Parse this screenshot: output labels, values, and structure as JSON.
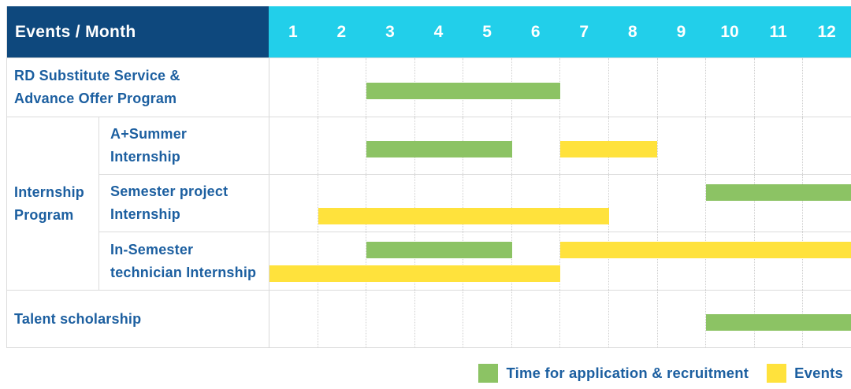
{
  "header": {
    "title": "Events / Month",
    "months": [
      "1",
      "2",
      "3",
      "4",
      "5",
      "6",
      "7",
      "8",
      "9",
      "10",
      "11",
      "12"
    ]
  },
  "group": {
    "lines": [
      "Internship",
      "Program"
    ]
  },
  "rows": [
    {
      "id": "rd-substitute-advance-offer",
      "label_lines": [
        "RD Substitute Service &",
        "Advance Offer Program"
      ],
      "group": "",
      "bar_lines": 1,
      "bars": [
        {
          "type": "recruitment",
          "start": 3,
          "end": 6,
          "line": 0
        }
      ]
    },
    {
      "id": "a-plus-summer-internship",
      "label_lines": [
        "A+Summer",
        "Internship"
      ],
      "group": "Internship Program",
      "bar_lines": 1,
      "bars": [
        {
          "type": "recruitment",
          "start": 3,
          "end": 5,
          "line": 0
        },
        {
          "type": "events",
          "start": 7,
          "end": 8,
          "line": 0
        }
      ]
    },
    {
      "id": "semester-project-internship",
      "label_lines": [
        "Semester project",
        "Internship"
      ],
      "group": "Internship Program",
      "bar_lines": 2,
      "bars": [
        {
          "type": "recruitment",
          "start": 10,
          "end": 12,
          "line": 0
        },
        {
          "type": "events",
          "start": 2,
          "end": 7,
          "line": 1
        }
      ]
    },
    {
      "id": "in-semester-technician-internship",
      "label_lines": [
        "In-Semester",
        "technician Internship"
      ],
      "group": "Internship Program",
      "bar_lines": 2,
      "bars": [
        {
          "type": "recruitment",
          "start": 3,
          "end": 5,
          "line": 0
        },
        {
          "type": "events",
          "start": 7,
          "end": 12,
          "line": 0
        },
        {
          "type": "events",
          "start": 1,
          "end": 6,
          "line": 1
        }
      ]
    },
    {
      "id": "talent-scholarship",
      "label_lines": [
        "Talent scholarship"
      ],
      "group": "",
      "bar_lines": 1,
      "bars": [
        {
          "type": "recruitment",
          "start": 10,
          "end": 12,
          "line": 0
        }
      ]
    }
  ],
  "legend": {
    "items": [
      {
        "type": "recruitment",
        "label": "Time for application & recruitment"
      },
      {
        "type": "events",
        "label": "Events"
      }
    ]
  },
  "colors": {
    "navy": "#0e487d",
    "cyan": "#22cfea",
    "recruitment": "#8cc364",
    "events": "#ffe23c",
    "label_text": "#1c5fa0"
  },
  "chart_data": {
    "type": "bar",
    "subtype": "gantt",
    "title": "Events / Month",
    "xlabel": "Month",
    "x_ticks": [
      "1",
      "2",
      "3",
      "4",
      "5",
      "6",
      "7",
      "8",
      "9",
      "10",
      "11",
      "12"
    ],
    "x_range": [
      1,
      12
    ],
    "grid": true,
    "legend_position": "bottom-right",
    "series_legend": [
      {
        "name": "Time for application & recruitment",
        "color": "#8cc364"
      },
      {
        "name": "Events",
        "color": "#ffe23c"
      }
    ],
    "rows": [
      {
        "category": "RD Substitute Service & Advance Offer Program",
        "group": "",
        "spans": [
          {
            "series": "Time for application & recruitment",
            "start_month": 3,
            "end_month": 6
          }
        ]
      },
      {
        "category": "A+Summer Internship",
        "group": "Internship Program",
        "spans": [
          {
            "series": "Time for application & recruitment",
            "start_month": 3,
            "end_month": 5
          },
          {
            "series": "Events",
            "start_month": 7,
            "end_month": 8
          }
        ]
      },
      {
        "category": "Semester project Internship",
        "group": "Internship Program",
        "spans": [
          {
            "series": "Time for application & recruitment",
            "start_month": 10,
            "end_month": 12
          },
          {
            "series": "Events",
            "start_month": 2,
            "end_month": 7
          }
        ]
      },
      {
        "category": "In-Semester technician Internship",
        "group": "Internship Program",
        "spans": [
          {
            "series": "Time for application & recruitment",
            "start_month": 3,
            "end_month": 5
          },
          {
            "series": "Events",
            "start_month": 7,
            "end_month": 12
          },
          {
            "series": "Events",
            "start_month": 1,
            "end_month": 6
          }
        ]
      },
      {
        "category": "Talent scholarship",
        "group": "",
        "spans": [
          {
            "series": "Time for application & recruitment",
            "start_month": 10,
            "end_month": 12
          }
        ]
      }
    ]
  }
}
